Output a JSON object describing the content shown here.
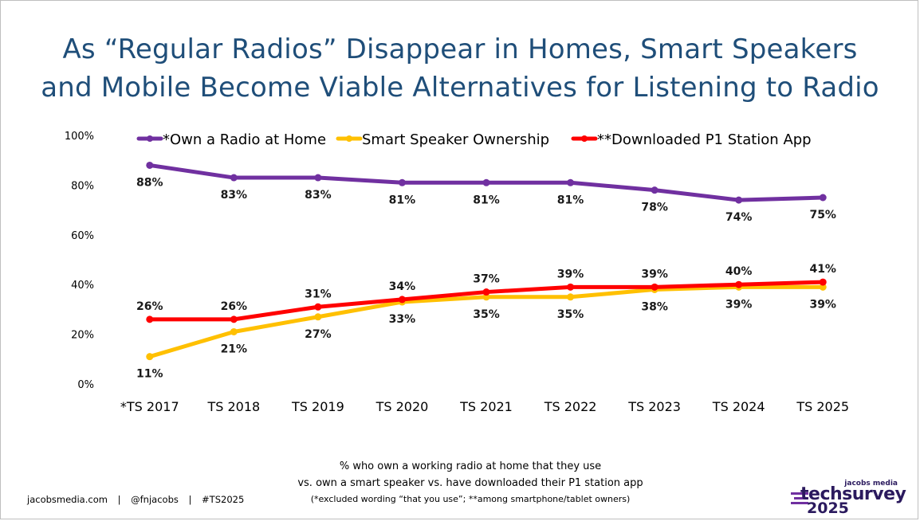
{
  "title_lines": [
    "As “Regular Radios” Disappear in Homes, Smart Speakers",
    "and Mobile Become Viable Alternatives for Listening to Radio"
  ],
  "footnote": {
    "line1": "% who own a working radio at home that they use",
    "line2": "vs. own a smart speaker vs. have downloaded their P1 station app",
    "line3": "(*excluded wording “that you use”; **among smartphone/tablet owners)"
  },
  "credits": {
    "site": "jacobsmedia.com",
    "sep": "|",
    "handle": "@fnjacobs",
    "hashtag": "#TS2025"
  },
  "logo": {
    "brand_small": "jacobs media",
    "brand_main": "techsurvey",
    "brand_year": "2025"
  },
  "chart_data": {
    "type": "line",
    "title": "",
    "xlabel": "",
    "ylabel": "",
    "categories": [
      "*TS 2017",
      "TS 2018",
      "TS 2019",
      "TS 2020",
      "TS 2021",
      "TS 2022",
      "TS 2023",
      "TS 2024",
      "TS 2025"
    ],
    "ylim": [
      0,
      100
    ],
    "yticks": [
      0,
      20,
      40,
      60,
      80,
      100
    ],
    "ytick_labels": [
      "0%",
      "20%",
      "40%",
      "60%",
      "80%",
      "100%"
    ],
    "grid": false,
    "legend_position": "top",
    "series": [
      {
        "name": "*Own a Radio at Home",
        "color": "#7030a0",
        "values": [
          88,
          83,
          83,
          81,
          81,
          81,
          78,
          74,
          75
        ],
        "labels": [
          "88%",
          "83%",
          "83%",
          "81%",
          "81%",
          "81%",
          "78%",
          "74%",
          "75%"
        ],
        "label_position": "below"
      },
      {
        "name": "Smart Speaker Ownership",
        "color": "#ffc000",
        "values": [
          11,
          21,
          27,
          33,
          35,
          35,
          38,
          39,
          39
        ],
        "labels": [
          "11%",
          "21%",
          "27%",
          "33%",
          "35%",
          "35%",
          "38%",
          "39%",
          "39%"
        ],
        "label_position": "below"
      },
      {
        "name": "**Downloaded P1 Station App",
        "color": "#ff0000",
        "values": [
          26,
          26,
          31,
          34,
          37,
          39,
          39,
          40,
          41
        ],
        "labels": [
          "26%",
          "26%",
          "31%",
          "34%",
          "37%",
          "39%",
          "39%",
          "40%",
          "41%"
        ],
        "label_position": "above"
      }
    ]
  }
}
